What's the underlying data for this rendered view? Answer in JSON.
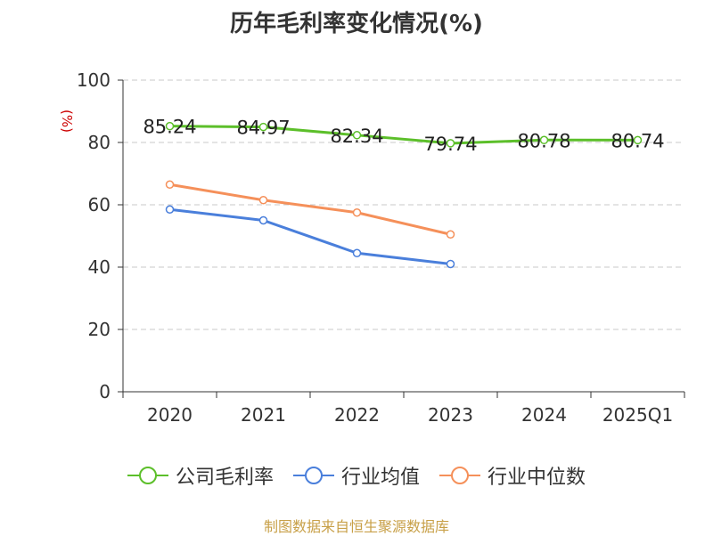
{
  "chart_data": {
    "type": "line",
    "title": "历年毛利率变化情况(%)",
    "ylabel": "(%)",
    "xlabel": "",
    "categories": [
      "2020",
      "2021",
      "2022",
      "2023",
      "2024",
      "2025Q1"
    ],
    "ylim": [
      0,
      100
    ],
    "yticks": [
      0,
      20,
      40,
      60,
      80,
      100
    ],
    "grid": true,
    "series": [
      {
        "name": "公司毛利率",
        "color": "#5cbf2a",
        "values": [
          85.24,
          84.97,
          82.34,
          79.74,
          80.78,
          80.74
        ],
        "labels": [
          "85.24",
          "84.97",
          "82.34",
          "79.74",
          "80.78",
          "80.74"
        ]
      },
      {
        "name": "行业均值",
        "color": "#4a7fdb",
        "values": [
          58.5,
          55.0,
          44.5,
          41.0,
          null,
          null
        ]
      },
      {
        "name": "行业中位数",
        "color": "#f5905a",
        "values": [
          66.5,
          61.5,
          57.5,
          50.5,
          null,
          null
        ]
      }
    ],
    "legend_position": "bottom"
  },
  "source": "制图数据来自恒生聚源数据库"
}
